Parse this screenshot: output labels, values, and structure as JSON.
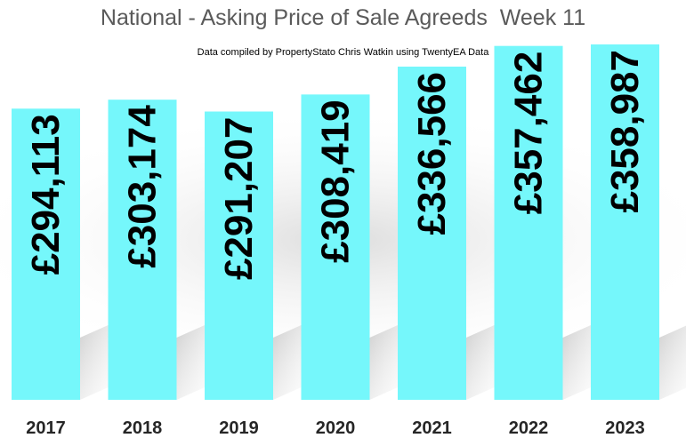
{
  "chart_data": {
    "type": "bar",
    "title": "National - Asking Price of Sale Agreeds  Week 11",
    "subtitle": "Data compiled by PropertyStato Chris Watkin using TwentyEA Data",
    "categories": [
      "2017",
      "2018",
      "2019",
      "2020",
      "2021",
      "2022",
      "2023"
    ],
    "values": [
      294113,
      303174,
      291207,
      308419,
      336566,
      357462,
      358987
    ],
    "data_labels": [
      "£294,113",
      "£303,174",
      "£291,207",
      "£308,419",
      "£336,566",
      "£357,462",
      "£358,987"
    ],
    "bar_color": "#75F7FB",
    "grid": false,
    "legend": "none"
  }
}
